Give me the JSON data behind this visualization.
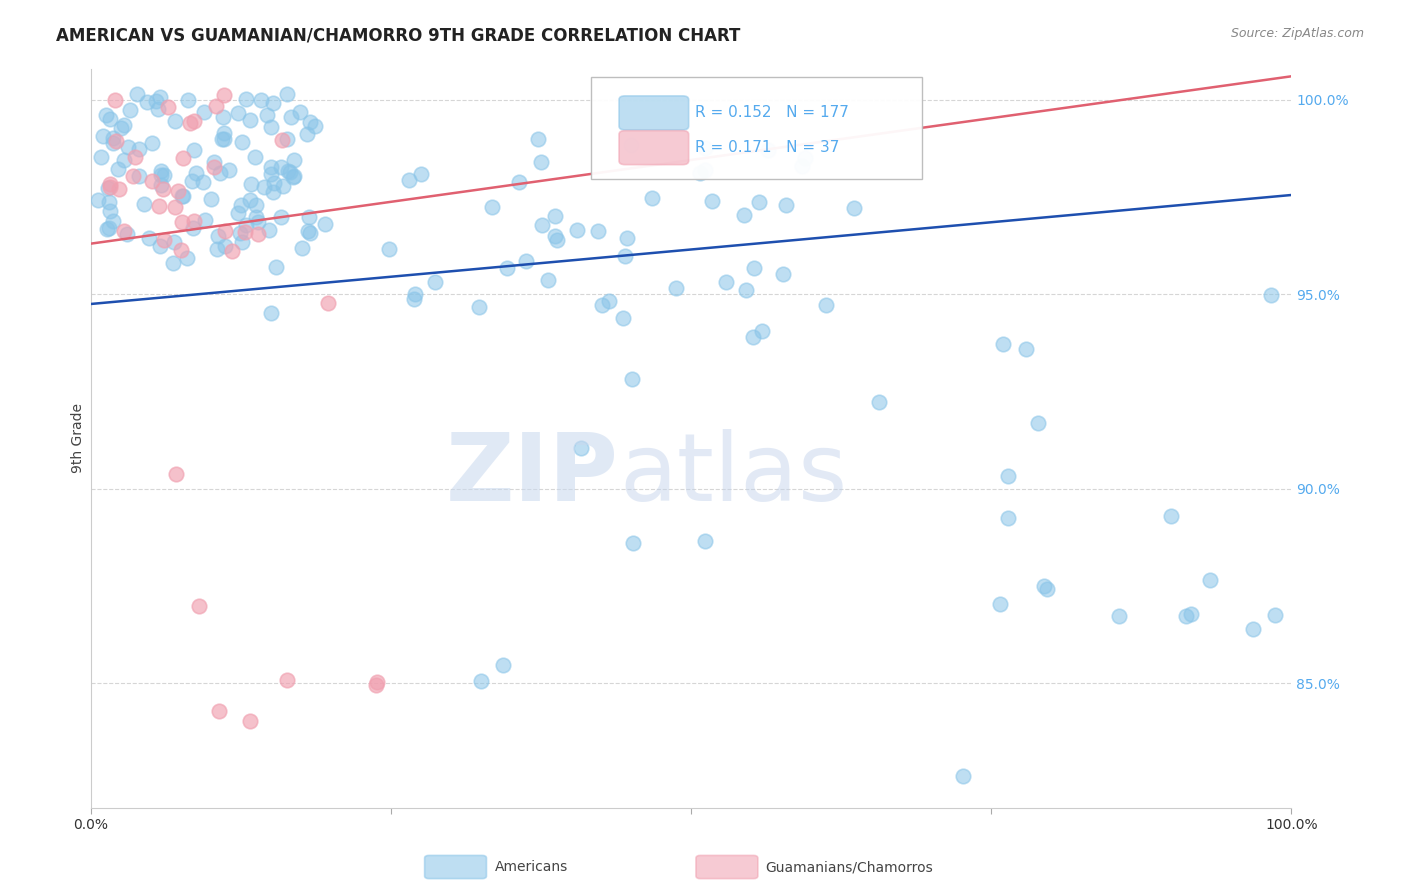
{
  "title": "AMERICAN VS GUAMANIAN/CHAMORRO 9TH GRADE CORRELATION CHART",
  "source": "Source: ZipAtlas.com",
  "ylabel": "9th Grade",
  "x_lim": [
    0.0,
    1.0
  ],
  "y_lim": [
    0.818,
    1.008
  ],
  "american_R": 0.152,
  "american_N": 177,
  "guamanian_R": 0.171,
  "guamanian_N": 37,
  "american_color": "#89C4E8",
  "american_edge_color": "#89C4E8",
  "guamanian_color": "#F0A0B0",
  "guamanian_edge_color": "#F0A0B0",
  "american_line_color": "#1E4FAF",
  "guamanian_line_color": "#E06070",
  "background_color": "#FFFFFF",
  "grid_color": "#CCCCCC",
  "title_fontsize": 12,
  "source_fontsize": 9,
  "legend_fontsize": 11,
  "tick_color": "#55AAEE",
  "american_line_y0": 0.9475,
  "american_line_y1": 0.9755,
  "guamanian_line_y0": 0.963,
  "guamanian_line_y1": 1.006
}
